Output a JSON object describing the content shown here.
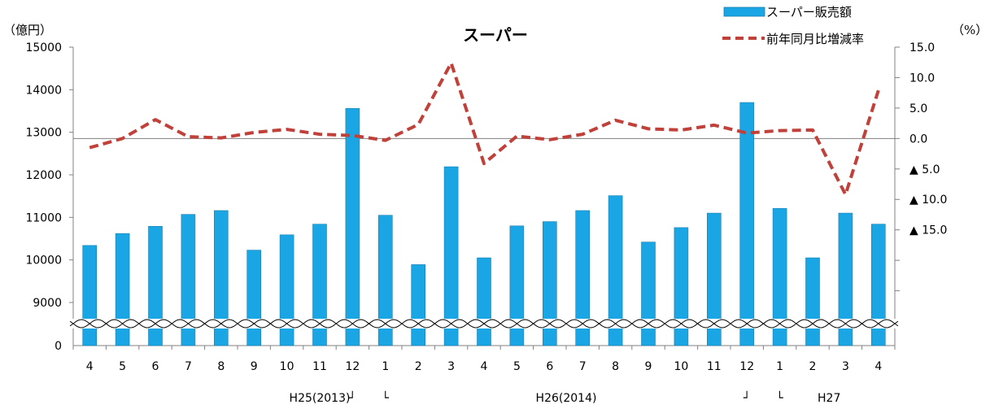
{
  "chart_data": {
    "type": "bar",
    "title": "スーパー",
    "left_unit": "（億円）",
    "right_unit": "（%）",
    "legend_position": "top-right",
    "categories": [
      "4",
      "5",
      "6",
      "7",
      "8",
      "9",
      "10",
      "11",
      "12",
      "1",
      "2",
      "3",
      "4",
      "5",
      "6",
      "7",
      "8",
      "9",
      "10",
      "11",
      "12",
      "1",
      "2",
      "3",
      "4"
    ],
    "left_axis": {
      "ticks": [
        "15000",
        "14000",
        "13000",
        "12000",
        "11000",
        "10000",
        "9000",
        "0"
      ],
      "range": [
        8500,
        15000
      ],
      "broken": true
    },
    "right_axis": {
      "ticks": [
        "15.0",
        "10.0",
        "5.0",
        "0.0",
        "▲ 5.0",
        "▲ 10.0",
        "▲ 15.0"
      ],
      "range": [
        -34,
        15
      ]
    },
    "series": [
      {
        "name": "スーパー販売額",
        "kind": "bar",
        "color": "#1aa6e4",
        "values": [
          10340,
          10620,
          10790,
          11070,
          11160,
          10230,
          10590,
          10840,
          13560,
          11050,
          9890,
          12190,
          10050,
          10800,
          10900,
          11160,
          11510,
          10420,
          10760,
          11100,
          13700,
          11210,
          10050,
          11100,
          10840
        ]
      },
      {
        "name": "前年同月比増減率",
        "kind": "line",
        "color": "#c0403a",
        "values": [
          -1.5,
          0,
          3.1,
          0.3,
          0.1,
          1.0,
          1.5,
          0.7,
          0.5,
          -0.3,
          2.3,
          12.4,
          -4.1,
          0.4,
          -0.2,
          0.7,
          3.0,
          1.6,
          1.4,
          2.2,
          0.9,
          1.3,
          1.4,
          -9.2,
          7.9
        ]
      }
    ],
    "group_labels": [
      {
        "text": "H25(2013)",
        "at": 7
      },
      {
        "text": "┘",
        "at": 8
      },
      {
        "text": "└",
        "at": 9
      },
      {
        "text": "H26(2014)",
        "at": 14.5
      },
      {
        "text": "┘",
        "at": 20
      },
      {
        "text": "└",
        "at": 21
      },
      {
        "text": "H27",
        "at": 22.5
      }
    ]
  }
}
